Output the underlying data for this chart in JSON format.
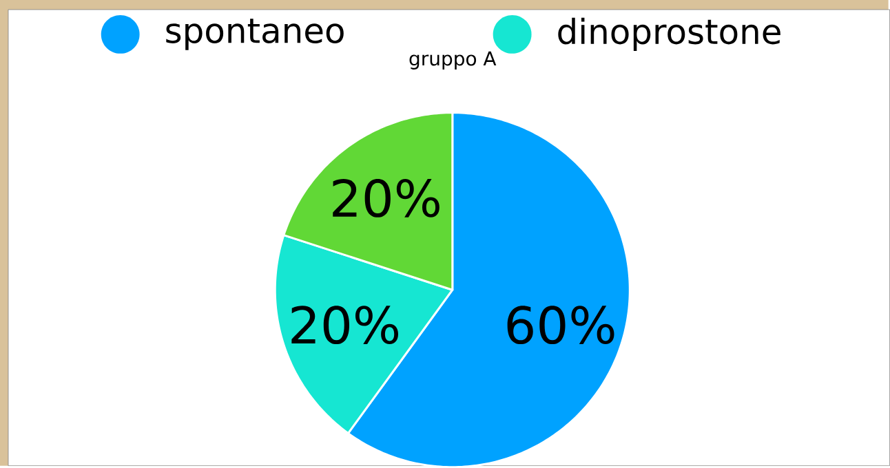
{
  "chart_data": {
    "type": "pie",
    "title": "gruppo A",
    "categories": [
      "spontaneo",
      "dinoprostone",
      null
    ],
    "values": [
      60,
      20,
      20
    ],
    "colors": [
      "#00a2ff",
      "#16e6d2",
      "#61d836"
    ],
    "value_labels": [
      "60%",
      "20%",
      "20%"
    ],
    "legend": "top"
  }
}
